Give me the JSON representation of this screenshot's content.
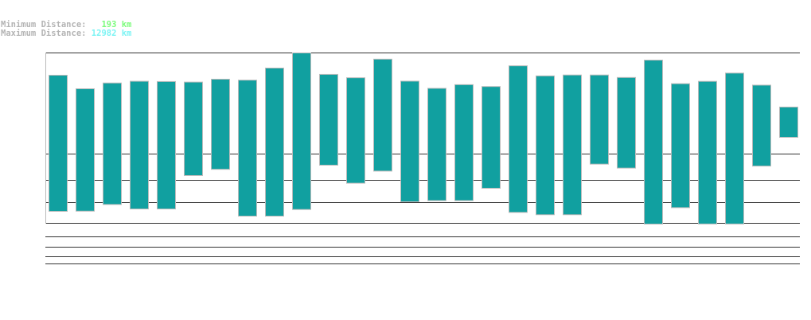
{
  "summary": {
    "min_label": "Minimum Distance:",
    "min_value": "193 km",
    "max_label": "Maximum Distance:",
    "max_value": "12982 km",
    "min_color": "#7cfc7c",
    "max_color": "#7cf4f4"
  },
  "chart_data": {
    "type": "bar",
    "subtype": "floating-range",
    "unit": "km",
    "bar_color": "#11a0a0",
    "series": [
      {
        "min": 342,
        "max": 9322
      },
      {
        "min": 345,
        "max": 7479
      },
      {
        "min": 453,
        "max": 8264
      },
      {
        "min": 378,
        "max": 8500
      },
      {
        "min": 378,
        "max": 8463
      },
      {
        "min": 1164,
        "max": 8387
      },
      {
        "min": 1402,
        "max": 8780
      },
      {
        "min": 273,
        "max": 8654
      },
      {
        "min": 273,
        "max": 10400
      },
      {
        "min": 370,
        "max": 12981
      },
      {
        "min": 1560,
        "max": 9449
      },
      {
        "min": 941,
        "max": 8979
      },
      {
        "min": 1334,
        "max": 11921
      },
      {
        "min": 498,
        "max": 8516
      },
      {
        "min": 524,
        "max": 7536
      },
      {
        "min": 524,
        "max": 8038
      },
      {
        "min": 793,
        "max": 7782
      },
      {
        "min": 327,
        "max": 10784
      },
      {
        "min": 293,
        "max": 9230
      },
      {
        "min": 293,
        "max": 9355
      },
      {
        "min": 1613,
        "max": 9355
      },
      {
        "min": 1449,
        "max": 9013
      },
      {
        "min": 192,
        "max": 11756
      },
      {
        "min": 400,
        "max": 8169
      },
      {
        "min": 194,
        "max": 8487
      },
      {
        "min": 194,
        "max": 9644
      },
      {
        "min": 1526,
        "max": 7972
      },
      {
        "min": 2946,
        "max": 5474
      }
    ],
    "grid": true
  }
}
